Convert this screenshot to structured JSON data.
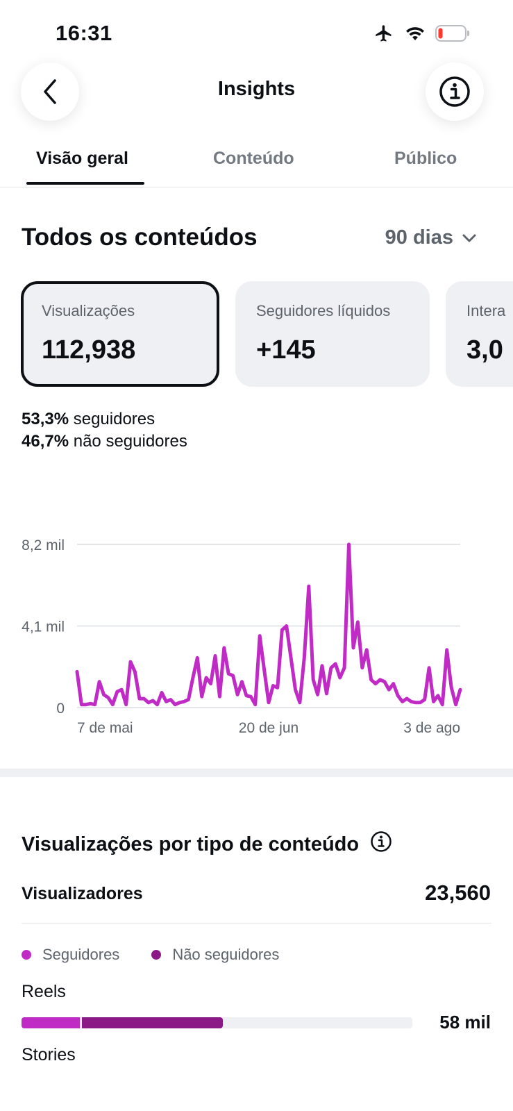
{
  "status": {
    "time": "16:31",
    "icons": [
      "airplane-icon",
      "wifi-icon",
      "battery-low-icon"
    ],
    "battery_color": "#ff3b30"
  },
  "nav": {
    "title": "Insights",
    "back_icon": "chevron-left-icon",
    "info_icon": "info-icon"
  },
  "tabs": [
    {
      "label": "Visão geral",
      "active": true
    },
    {
      "label": "Conteúdo",
      "active": false
    },
    {
      "label": "Público",
      "active": false
    }
  ],
  "overview": {
    "title": "Todos os conteúdos",
    "range": "90 dias",
    "cards": [
      {
        "label": "Visualizações",
        "value": "112,938",
        "selected": true
      },
      {
        "label": "Seguidores líquidos",
        "value": "+145",
        "selected": false
      },
      {
        "label": "Intera",
        "value": "3,0",
        "selected": false
      }
    ],
    "split": [
      {
        "percent": "53,3%",
        "label": "seguidores"
      },
      {
        "percent": "46,7%",
        "label": "não seguidores"
      }
    ]
  },
  "chart_data": {
    "type": "line",
    "x_ticks": [
      "7 de mai",
      "20 de jun",
      "3 de ago"
    ],
    "y_ticks": [
      "8,2 mil",
      "4,1 mil",
      "0"
    ],
    "ylim": [
      0,
      8200
    ],
    "color": "#c02bc6",
    "grid": true,
    "values": [
      1800,
      150,
      150,
      200,
      150,
      1300,
      650,
      500,
      150,
      800,
      900,
      150,
      2300,
      1800,
      450,
      450,
      250,
      350,
      150,
      750,
      300,
      400,
      150,
      250,
      300,
      400,
      1500,
      2500,
      550,
      1500,
      1200,
      2600,
      550,
      3000,
      1700,
      1600,
      650,
      1300,
      600,
      550,
      150,
      3600,
      1900,
      250,
      1100,
      1000,
      3900,
      4100,
      2500,
      900,
      250,
      2500,
      6100,
      1400,
      650,
      2100,
      700,
      2000,
      2200,
      1500,
      2000,
      8200,
      3000,
      4300,
      2000,
      2900,
      1400,
      1200,
      1400,
      1300,
      900,
      1200,
      600,
      300,
      450,
      300,
      250,
      250,
      400,
      2000,
      300,
      600,
      150,
      2900,
      1000,
      150,
      900
    ]
  },
  "content_type": {
    "title": "Visualizações por tipo de conteúdo",
    "viewers_label": "Visualizadores",
    "viewers_value": "23,560",
    "legend": [
      {
        "label": "Seguidores",
        "color": "#c02bc6"
      },
      {
        "label": "Não seguidores",
        "color": "#8b1a86"
      }
    ],
    "rows": [
      {
        "label": "Reels",
        "value": "58 mil",
        "followers_fraction": 0.15,
        "non_followers_fraction": 0.36
      },
      {
        "label": "Stories"
      }
    ]
  }
}
